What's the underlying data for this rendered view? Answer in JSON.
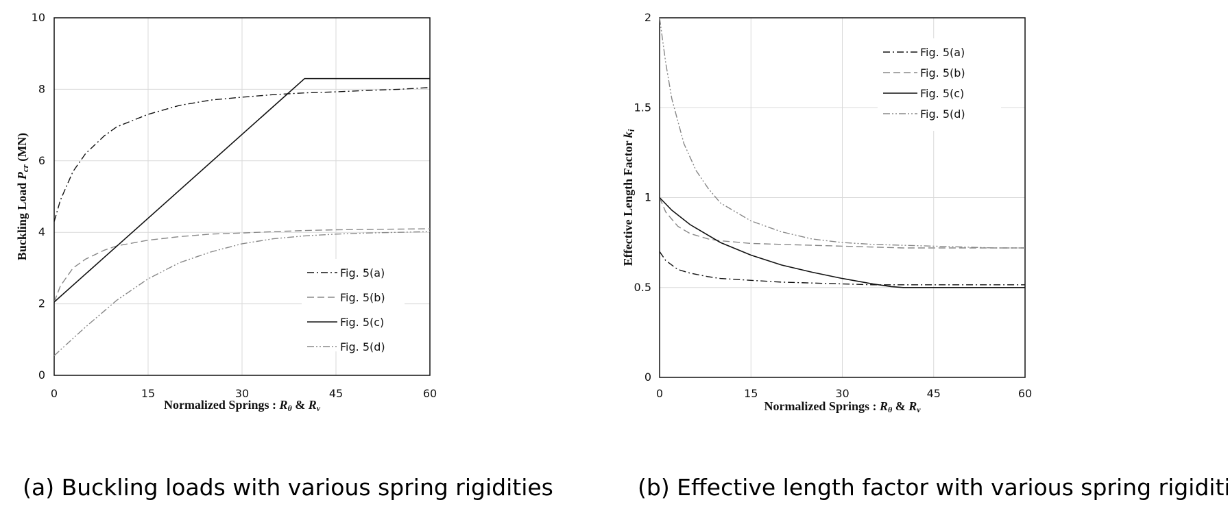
{
  "captions": {
    "a": "(a) Buckling loads with various spring rigidities",
    "b": "(b) Effective length factor with various spring rigidities"
  },
  "chart_data": [
    {
      "type": "line",
      "xlabel": "Normalized Springs : Rθ & Rv",
      "ylabel": "Buckling Load Pcr (MN)",
      "xlim": [
        0,
        60
      ],
      "ylim": [
        0,
        10
      ],
      "xticks": [
        "0",
        "15",
        "30",
        "45",
        "60"
      ],
      "yticks": [
        "0",
        "2",
        "4",
        "6",
        "8",
        "10"
      ],
      "grid": true,
      "legend_position": "bottom-right",
      "series": [
        {
          "name": "Fig. 5(a)",
          "color": "#111111",
          "dash": "dashdot",
          "x": [
            0,
            1,
            3,
            5,
            8,
            10,
            15,
            20,
            25,
            30,
            35,
            40,
            45,
            50,
            55,
            60
          ],
          "y": [
            4.3,
            4.9,
            5.7,
            6.2,
            6.7,
            6.95,
            7.3,
            7.55,
            7.7,
            7.78,
            7.85,
            7.9,
            7.93,
            7.97,
            8.0,
            8.05
          ]
        },
        {
          "name": "Fig. 5(b)",
          "color": "#888888",
          "dash": "dash",
          "x": [
            0,
            1,
            3,
            5,
            8,
            10,
            15,
            20,
            25,
            30,
            35,
            40,
            45,
            50,
            55,
            60
          ],
          "y": [
            2.05,
            2.5,
            3.0,
            3.25,
            3.5,
            3.62,
            3.78,
            3.88,
            3.95,
            3.98,
            4.02,
            4.05,
            4.07,
            4.08,
            4.09,
            4.1
          ]
        },
        {
          "name": "Fig. 5(c)",
          "color": "#111111",
          "dash": "solid",
          "x": [
            0,
            40,
            60
          ],
          "y": [
            2.05,
            8.3,
            8.3
          ]
        },
        {
          "name": "Fig. 5(d)",
          "color": "#888888",
          "dash": "dashdotdot",
          "x": [
            0,
            5,
            10,
            15,
            20,
            25,
            30,
            35,
            40,
            45,
            50,
            55,
            60
          ],
          "y": [
            0.55,
            1.35,
            2.1,
            2.7,
            3.15,
            3.45,
            3.68,
            3.82,
            3.9,
            3.95,
            3.98,
            4.0,
            4.02
          ]
        }
      ]
    },
    {
      "type": "line",
      "xlabel": "Normalized Springs : Rθ & Rv",
      "ylabel": "Effective Length Factor ki",
      "xlim": [
        0,
        60
      ],
      "ylim": [
        0,
        2
      ],
      "xticks": [
        "0",
        "15",
        "30",
        "45",
        "60"
      ],
      "yticks": [
        "0",
        "0.5",
        "1",
        "1.5",
        "2"
      ],
      "grid": true,
      "legend_position": "top-right",
      "series": [
        {
          "name": "Fig. 5(a)",
          "color": "#111111",
          "dash": "dashdot",
          "x": [
            0,
            1,
            3,
            5,
            8,
            10,
            15,
            20,
            25,
            30,
            35,
            40,
            45,
            50,
            55,
            60
          ],
          "y": [
            0.7,
            0.65,
            0.6,
            0.58,
            0.56,
            0.55,
            0.54,
            0.53,
            0.525,
            0.52,
            0.515,
            0.515,
            0.515,
            0.515,
            0.515,
            0.515
          ]
        },
        {
          "name": "Fig. 5(b)",
          "color": "#888888",
          "dash": "dash",
          "x": [
            0,
            1,
            3,
            5,
            8,
            10,
            15,
            20,
            25,
            30,
            35,
            40,
            45,
            50,
            55,
            60
          ],
          "y": [
            1.0,
            0.92,
            0.84,
            0.8,
            0.77,
            0.76,
            0.745,
            0.74,
            0.735,
            0.73,
            0.725,
            0.72,
            0.72,
            0.72,
            0.72,
            0.72
          ]
        },
        {
          "name": "Fig. 5(c)",
          "color": "#111111",
          "dash": "solid",
          "x": [
            0,
            2,
            5,
            10,
            15,
            20,
            25,
            30,
            35,
            38,
            40,
            45,
            50,
            55,
            60
          ],
          "y": [
            1.0,
            0.93,
            0.85,
            0.75,
            0.68,
            0.625,
            0.585,
            0.55,
            0.52,
            0.505,
            0.5,
            0.5,
            0.5,
            0.5,
            0.5
          ]
        },
        {
          "name": "Fig. 5(d)",
          "color": "#888888",
          "dash": "dashdotdot",
          "x": [
            0,
            1,
            2,
            4,
            6,
            8,
            10,
            15,
            20,
            25,
            30,
            35,
            40,
            45,
            50,
            55,
            60
          ],
          "y": [
            2.0,
            1.75,
            1.55,
            1.3,
            1.15,
            1.05,
            0.97,
            0.87,
            0.81,
            0.77,
            0.75,
            0.74,
            0.735,
            0.73,
            0.725,
            0.72,
            0.72
          ]
        }
      ]
    }
  ]
}
